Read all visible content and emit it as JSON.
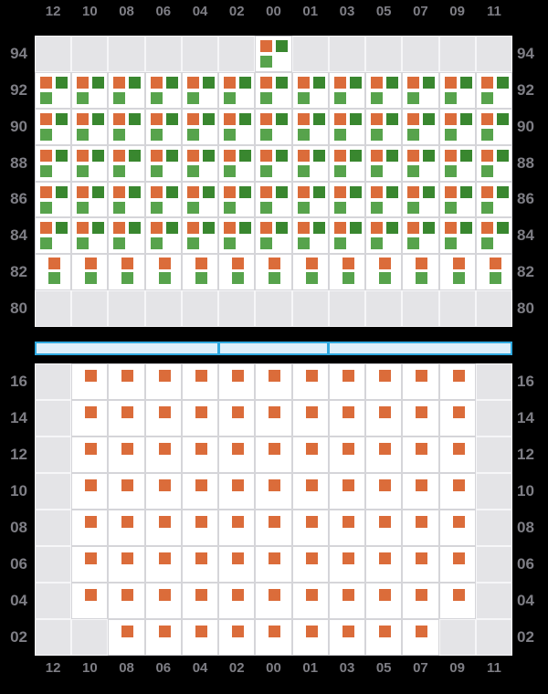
{
  "colors": {
    "background": "#000000",
    "axis_label": "#7E7E85",
    "cell_filled_bg": "#FFFFFF",
    "cell_empty_bg": "#E4E4E7",
    "cell_border": "#D5D5D9",
    "cell_empty_border": "#F6F6F8",
    "orange": "#DB6C3A",
    "dark_green": "#39872F",
    "light_green": "#57A34C",
    "slider_fill": "#DDEFFA",
    "slider_border": "#2FA9E0"
  },
  "chart_data": [
    {
      "type": "heatmap",
      "panel": "top",
      "x_labels": [
        "12",
        "10",
        "08",
        "06",
        "04",
        "02",
        "00",
        "01",
        "03",
        "05",
        "07",
        "09",
        "11"
      ],
      "y_labels": [
        "94",
        "92",
        "90",
        "88",
        "86",
        "84",
        "82",
        "80"
      ],
      "cell_states_legend": {
        "triple": [
          "orange",
          "dark_green",
          "light_green"
        ],
        "pair": [
          "orange",
          "light_green"
        ],
        "single": [
          "orange"
        ],
        "empty": []
      },
      "cells": [
        [
          "empty",
          "empty",
          "empty",
          "empty",
          "empty",
          "empty",
          "triple",
          "empty",
          "empty",
          "empty",
          "empty",
          "empty",
          "empty"
        ],
        [
          "triple",
          "triple",
          "triple",
          "triple",
          "triple",
          "triple",
          "triple",
          "triple",
          "triple",
          "triple",
          "triple",
          "triple",
          "triple"
        ],
        [
          "triple",
          "triple",
          "triple",
          "triple",
          "triple",
          "triple",
          "triple",
          "triple",
          "triple",
          "triple",
          "triple",
          "triple",
          "triple"
        ],
        [
          "triple",
          "triple",
          "triple",
          "triple",
          "triple",
          "triple",
          "triple",
          "triple",
          "triple",
          "triple",
          "triple",
          "triple",
          "triple"
        ],
        [
          "triple",
          "triple",
          "triple",
          "triple",
          "triple",
          "triple",
          "triple",
          "triple",
          "triple",
          "triple",
          "triple",
          "triple",
          "triple"
        ],
        [
          "triple",
          "triple",
          "triple",
          "triple",
          "triple",
          "triple",
          "triple",
          "triple",
          "triple",
          "triple",
          "triple",
          "triple",
          "triple"
        ],
        [
          "pair",
          "pair",
          "pair",
          "pair",
          "pair",
          "pair",
          "pair",
          "pair",
          "pair",
          "pair",
          "pair",
          "pair",
          "pair"
        ],
        [
          "empty",
          "empty",
          "empty",
          "empty",
          "empty",
          "empty",
          "empty",
          "empty",
          "empty",
          "empty",
          "empty",
          "empty",
          "empty"
        ]
      ]
    },
    {
      "type": "heatmap",
      "panel": "bottom",
      "x_labels": [
        "12",
        "10",
        "08",
        "06",
        "04",
        "02",
        "00",
        "01",
        "03",
        "05",
        "07",
        "09",
        "11"
      ],
      "y_labels": [
        "16",
        "14",
        "12",
        "10",
        "08",
        "06",
        "04",
        "02"
      ],
      "cell_states_legend": {
        "single": [
          "orange"
        ],
        "empty": []
      },
      "cells": [
        [
          "empty",
          "single",
          "single",
          "single",
          "single",
          "single",
          "single",
          "single",
          "single",
          "single",
          "single",
          "single",
          "empty"
        ],
        [
          "empty",
          "single",
          "single",
          "single",
          "single",
          "single",
          "single",
          "single",
          "single",
          "single",
          "single",
          "single",
          "empty"
        ],
        [
          "empty",
          "single",
          "single",
          "single",
          "single",
          "single",
          "single",
          "single",
          "single",
          "single",
          "single",
          "single",
          "empty"
        ],
        [
          "empty",
          "single",
          "single",
          "single",
          "single",
          "single",
          "single",
          "single",
          "single",
          "single",
          "single",
          "single",
          "empty"
        ],
        [
          "empty",
          "single",
          "single",
          "single",
          "single",
          "single",
          "single",
          "single",
          "single",
          "single",
          "single",
          "single",
          "empty"
        ],
        [
          "empty",
          "single",
          "single",
          "single",
          "single",
          "single",
          "single",
          "single",
          "single",
          "single",
          "single",
          "single",
          "empty"
        ],
        [
          "empty",
          "single",
          "single",
          "single",
          "single",
          "single",
          "single",
          "single",
          "single",
          "single",
          "single",
          "single",
          "empty"
        ],
        [
          "empty",
          "empty",
          "single",
          "single",
          "single",
          "single",
          "single",
          "single",
          "single",
          "single",
          "single",
          "empty",
          "empty"
        ]
      ]
    }
  ],
  "slider": {
    "type": "range-selector",
    "segments": 3,
    "segment_column_spans": [
      [
        "12",
        "04"
      ],
      [
        "02",
        "01"
      ],
      [
        "03",
        "11"
      ]
    ],
    "divider_after_column_index": [
      5,
      8
    ]
  }
}
